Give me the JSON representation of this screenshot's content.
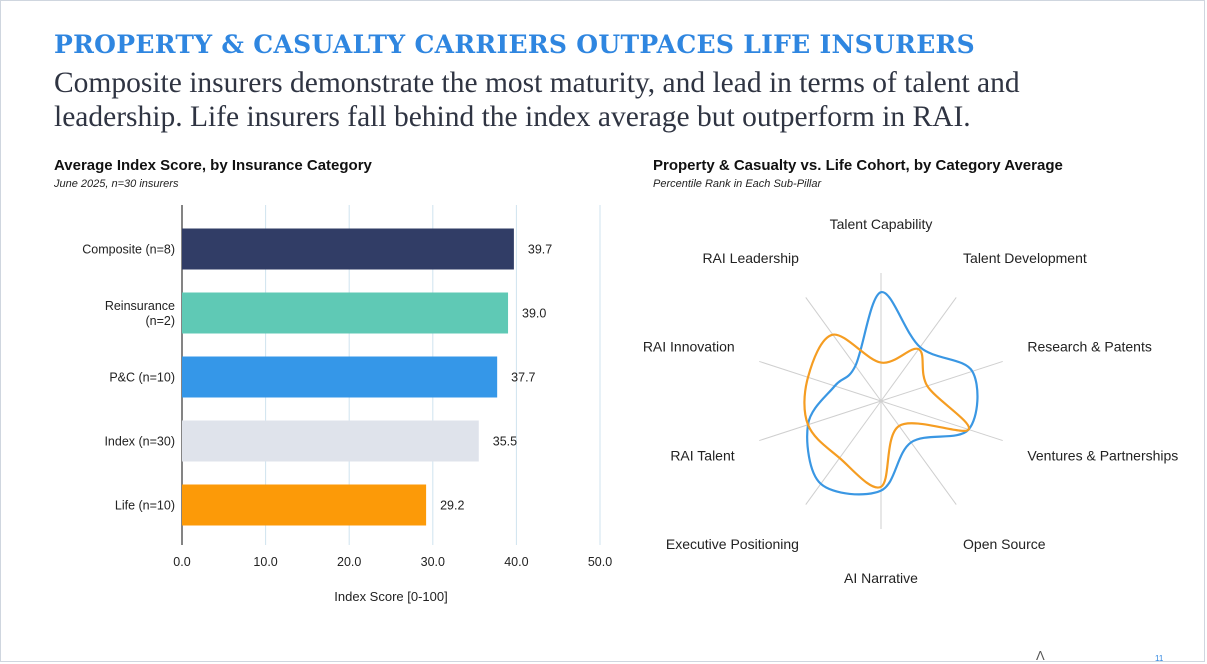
{
  "slide": {
    "headline": "PROPERTY & CASUALTY CARRIERS OUTPACES LIFE INSURERS",
    "subheadline": "Composite insurers demonstrate the most maturity, and lead in terms of talent and leadership. Life insurers fall behind the index average but outperform in RAI.",
    "page_number": "11",
    "logo_glyph": "Λ"
  },
  "chart_data": [
    {
      "type": "bar",
      "orientation": "horizontal",
      "title": "Average Index Score, by Insurance Category",
      "subtitle": "June 2025, n=30 insurers",
      "categories": [
        "Composite (n=8)",
        "Reinsurance (n=2)",
        "P&C (n=10)",
        "Index (n=30)",
        "Life (n=10)"
      ],
      "category_lines": [
        [
          "Composite (n=8)"
        ],
        [
          "Reinsurance",
          "(n=2)"
        ],
        [
          "P&C (n=10)"
        ],
        [
          "Index (n=30)"
        ],
        [
          "Life (n=10)"
        ]
      ],
      "values": [
        39.7,
        39.0,
        37.7,
        35.5,
        29.2
      ],
      "value_labels": [
        "39.7",
        "39.0",
        "37.7",
        "35.5",
        "29.2"
      ],
      "colors": [
        "#313d66",
        "#5fc9b5",
        "#3597e8",
        "#dfe3eb",
        "#fc9a08"
      ],
      "xlabel": "Index Score [0-100]",
      "xlim": [
        0,
        50
      ],
      "xticks": [
        0,
        10,
        20,
        30,
        40,
        50
      ],
      "xtick_labels": [
        "0.0",
        "10.0",
        "20.0",
        "30.0",
        "40.0",
        "50.0"
      ],
      "grid": true
    },
    {
      "type": "radar",
      "title": "Property & Casualty vs. Life Cohort, by Category Average",
      "subtitle": "Percentile Rank in Each Sub-Pillar",
      "axes": [
        "Talent Capability",
        "Talent Development",
        "Research & Patents",
        "Ventures & Partnerships",
        "Open Source",
        "AI Narrative",
        "Executive Positioning",
        "RAI Talent",
        "RAI Innovation",
        "RAI Leadership"
      ],
      "range": [
        0,
        100
      ],
      "series": [
        {
          "name": "Property & Casualty",
          "color": "#3a97e3",
          "values": [
            85,
            52,
            75,
            72,
            40,
            70,
            80,
            60,
            38,
            34
          ]
        },
        {
          "name": "Life",
          "color": "#f59d22",
          "values": [
            30,
            50,
            38,
            72,
            24,
            67,
            55,
            60,
            60,
            64
          ]
        }
      ]
    }
  ]
}
